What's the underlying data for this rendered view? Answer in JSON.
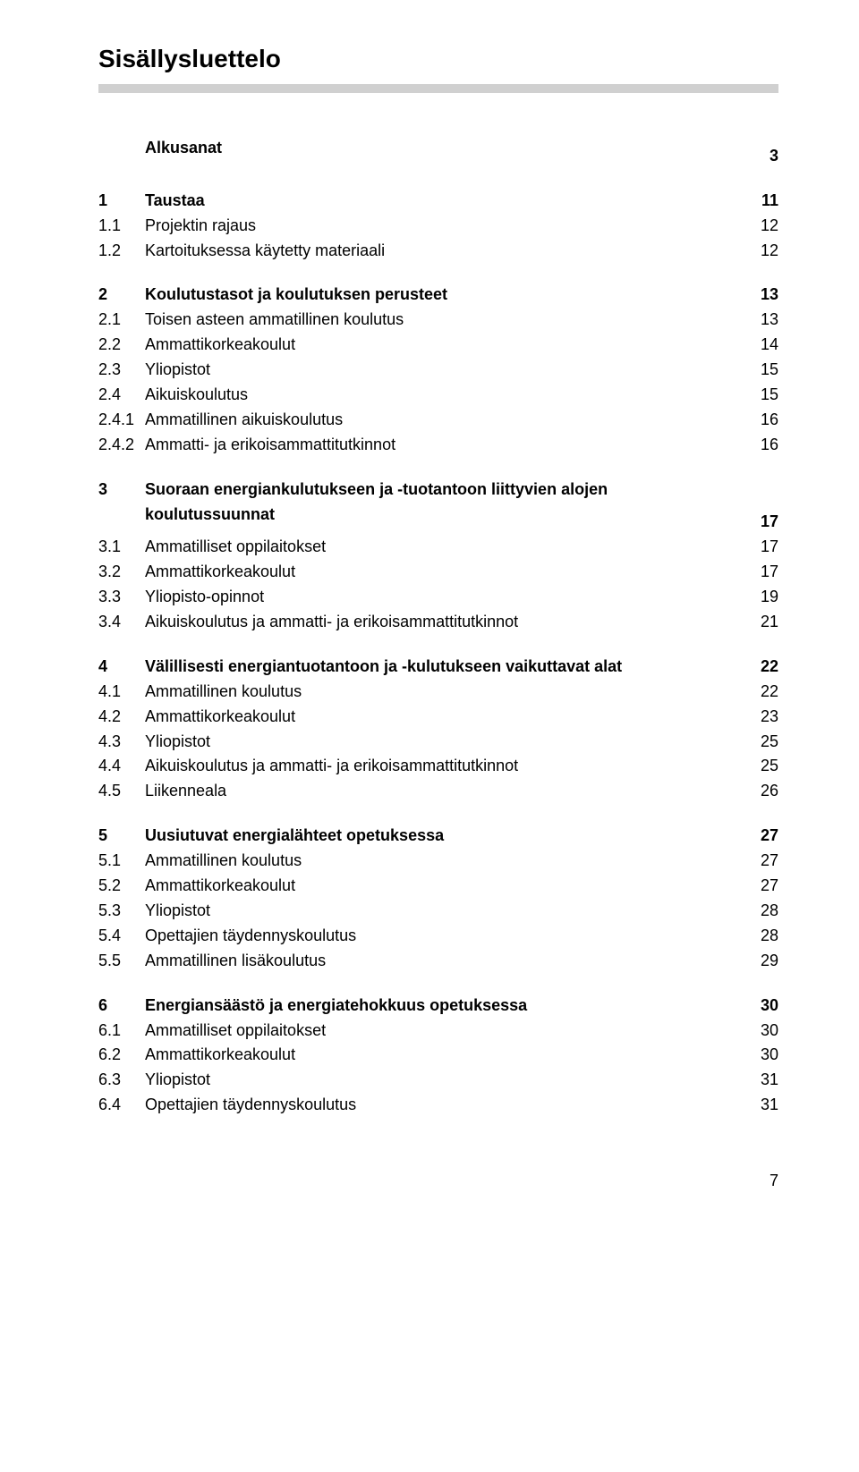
{
  "title": "Sisällysluettelo",
  "colors": {
    "rule": "#d0d0d0",
    "text": "#000000",
    "bg": "#ffffff"
  },
  "fonts": {
    "title_size": 28,
    "body_size": 18,
    "line_height": 1.55
  },
  "sections": [
    {
      "heading": {
        "num": "",
        "label": "Alkusanat",
        "page": "3",
        "bold": true
      },
      "items": []
    },
    {
      "heading": {
        "num": "1",
        "label": "Taustaa",
        "page": "11",
        "bold": true
      },
      "items": [
        {
          "num": "1.1",
          "label": "Projektin rajaus",
          "page": "12"
        },
        {
          "num": "1.2",
          "label": "Kartoituksessa käytetty materiaali",
          "page": "12"
        }
      ]
    },
    {
      "heading": {
        "num": "2",
        "label": "Koulutustasot ja koulutuksen perusteet",
        "page": "13",
        "bold": true
      },
      "items": [
        {
          "num": "2.1",
          "label": "Toisen asteen ammatillinen koulutus",
          "page": "13"
        },
        {
          "num": "2.2",
          "label": "Ammattikorkeakoulut",
          "page": "14"
        },
        {
          "num": "2.3",
          "label": "Yliopistot",
          "page": "15"
        },
        {
          "num": "2.4",
          "label": "Aikuiskoulutus",
          "page": "15"
        },
        {
          "num": "2.4.1",
          "label": "Ammatillinen aikuiskoulutus",
          "page": "16"
        },
        {
          "num": "2.4.2",
          "label": "Ammatti- ja erikoisammattitutkinnot",
          "page": "16"
        }
      ]
    },
    {
      "heading": {
        "num": "3",
        "label": "Suoraan energiankulutukseen ja -tuotantoon liittyvien alojen",
        "page": "",
        "bold": true,
        "wrap": true
      },
      "heading2": {
        "num": "",
        "label": "koulutussuunnat",
        "page": "17",
        "bold": true
      },
      "items": [
        {
          "num": "3.1",
          "label": "Ammatilliset oppilaitokset",
          "page": "17"
        },
        {
          "num": "3.2",
          "label": "Ammattikorkeakoulut",
          "page": "17"
        },
        {
          "num": "3.3",
          "label": "Yliopisto-opinnot",
          "page": "19"
        },
        {
          "num": "3.4",
          "label": "Aikuiskoulutus ja ammatti- ja erikoisammattitutkinnot",
          "page": "21"
        }
      ]
    },
    {
      "heading": {
        "num": "4",
        "label": "Välillisesti energiantuotantoon ja -kulutukseen vaikuttavat alat",
        "page": "22",
        "bold": true
      },
      "items": [
        {
          "num": "4.1",
          "label": "Ammatillinen koulutus",
          "page": "22"
        },
        {
          "num": "4.2",
          "label": "Ammattikorkeakoulut",
          "page": "23"
        },
        {
          "num": "4.3",
          "label": "Yliopistot",
          "page": "25"
        },
        {
          "num": "4.4",
          "label": "Aikuiskoulutus ja ammatti- ja erikoisammattitutkinnot",
          "page": "25"
        },
        {
          "num": "4.5",
          "label": "Liikenneala",
          "page": "26"
        }
      ]
    },
    {
      "heading": {
        "num": "5",
        "label": "Uusiutuvat energialähteet opetuksessa",
        "page": "27",
        "bold": true
      },
      "items": [
        {
          "num": "5.1",
          "label": "Ammatillinen koulutus",
          "page": "27"
        },
        {
          "num": "5.2",
          "label": "Ammattikorkeakoulut",
          "page": "27"
        },
        {
          "num": "5.3",
          "label": "Yliopistot",
          "page": "28"
        },
        {
          "num": "5.4",
          "label": "Opettajien täydennyskoulutus",
          "page": "28"
        },
        {
          "num": "5.5",
          "label": "Ammatillinen lisäkoulutus",
          "page": "29"
        }
      ]
    },
    {
      "heading": {
        "num": "6",
        "label": "Energiansäästö ja energiatehokkuus opetuksessa",
        "page": "30",
        "bold": true
      },
      "items": [
        {
          "num": "6.1",
          "label": "Ammatilliset oppilaitokset",
          "page": "30"
        },
        {
          "num": "6.2",
          "label": "Ammattikorkeakoulut",
          "page": "30"
        },
        {
          "num": "6.3",
          "label": "Yliopistot",
          "page": "31"
        },
        {
          "num": "6.4",
          "label": "Opettajien täydennyskoulutus",
          "page": "31"
        }
      ]
    }
  ],
  "footer_page": "7"
}
